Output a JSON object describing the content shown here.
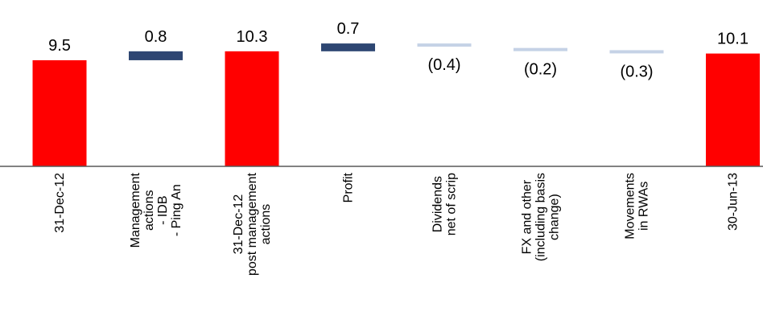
{
  "chart_data": {
    "type": "bar",
    "subtype": "waterfall",
    "title": "",
    "xlabel": "",
    "ylabel": "",
    "grid": false,
    "legend": "none",
    "categories": [
      [
        "31-Dec-12"
      ],
      [
        "Management",
        "actions",
        "- IDB",
        "- Ping An"
      ],
      [
        "31-Dec-12",
        "post management",
        "actions"
      ],
      [
        "Profit"
      ],
      [
        "Dividends",
        "net of scrip"
      ],
      [
        "FX and other",
        "(including basis",
        "change)"
      ],
      [
        "Movements",
        "in RWAs"
      ],
      [
        "30-Jun-13"
      ]
    ],
    "values": [
      9.5,
      0.8,
      10.3,
      0.7,
      -0.4,
      -0.2,
      -0.3,
      10.1
    ],
    "value_labels": [
      "9.5",
      "0.8",
      "10.3",
      "0.7",
      "(0.4)",
      "(0.2)",
      "(0.3)",
      "10.1"
    ],
    "bar_kind": [
      "total",
      "delta",
      "total",
      "delta",
      "delta",
      "delta",
      "delta",
      "total"
    ],
    "colors": {
      "total": "#ff0000",
      "increase": "#2e4672",
      "decrease": "#c5d2e6",
      "axis": "#595959"
    }
  }
}
